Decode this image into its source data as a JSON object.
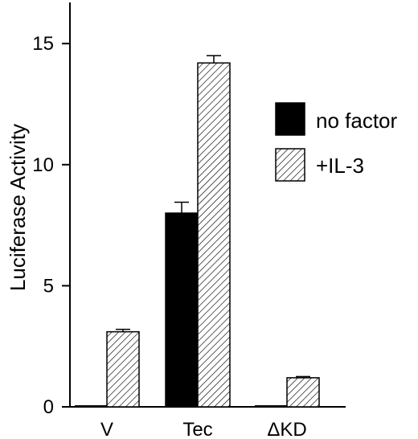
{
  "chart_data": {
    "type": "bar",
    "title": "",
    "xlabel": "",
    "ylabel": "Luciferase Activity",
    "categories": [
      "V",
      "Tec",
      "ΔKD"
    ],
    "series": [
      {
        "name": "no factor",
        "fill": "solid",
        "color": "#000000",
        "values": [
          0.0,
          8.0,
          0.0
        ],
        "errors": [
          0.0,
          0.45,
          0.0
        ]
      },
      {
        "name": "+IL-3",
        "fill": "hatched",
        "color": "#000000",
        "values": [
          3.1,
          14.2,
          1.2
        ],
        "errors": [
          0.1,
          0.3,
          0.05
        ]
      }
    ],
    "yticks": [
      0,
      5,
      10,
      15
    ],
    "ylim": [
      0,
      16.7
    ],
    "grid": false,
    "legend_position": "right"
  }
}
